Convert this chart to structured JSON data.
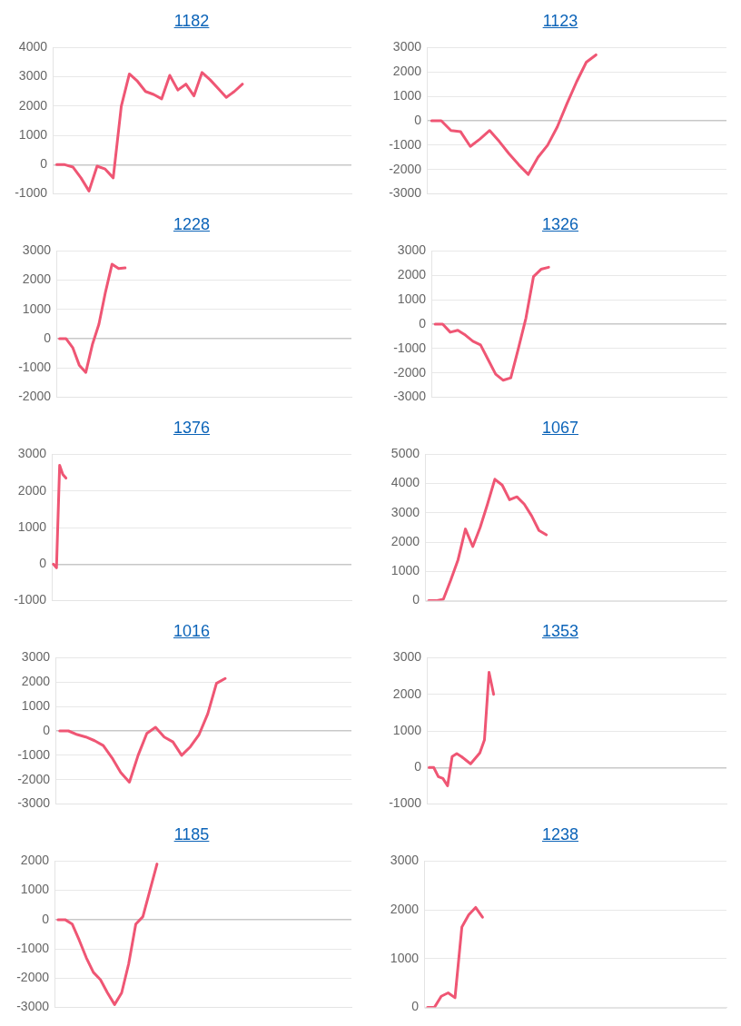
{
  "chart_data": [
    {
      "type": "line",
      "title": "1182",
      "categories": [
        null,
        null,
        null,
        null,
        null,
        null,
        null,
        null,
        null,
        null,
        null,
        null,
        null,
        null,
        null,
        null,
        null,
        null,
        null,
        null,
        null,
        null,
        null,
        null,
        null,
        null,
        null,
        null,
        null,
        null,
        null,
        null,
        null,
        null,
        null,
        null,
        null
      ],
      "values": [
        0,
        0,
        -80,
        -450,
        -900,
        -50,
        -150,
        -450,
        2000,
        3100,
        2850,
        2500,
        2400,
        2250,
        3050,
        2550,
        2750,
        2350,
        3150,
        2900,
        2600,
        2300,
        2500,
        2750,
        null,
        null,
        null,
        null,
        null,
        null,
        null,
        null,
        null,
        null,
        null,
        null,
        null
      ],
      "color": "#ef5674",
      "ylim": [
        -1000,
        4000
      ],
      "yticks": [
        -1000,
        0,
        1000,
        2000,
        3000,
        4000
      ],
      "grid": "y",
      "tick_labels": "y",
      "marker": "none"
    },
    {
      "type": "line",
      "title": "1123",
      "categories": [
        null,
        null,
        null,
        null,
        null,
        null,
        null,
        null,
        null,
        null,
        null,
        null,
        null,
        null,
        null,
        null,
        null,
        null,
        null,
        null,
        null,
        null,
        null,
        null,
        null,
        null,
        null,
        null,
        null,
        null,
        null
      ],
      "values": [
        0,
        0,
        -400,
        -450,
        -1050,
        -750,
        -400,
        -850,
        -1350,
        -1800,
        -2200,
        -1500,
        -1000,
        -250,
        700,
        1600,
        2400,
        2700,
        null,
        null,
        null,
        null,
        null,
        null,
        null,
        null,
        null,
        null,
        null,
        null,
        null
      ],
      "color": "#ef5674",
      "ylim": [
        -3000,
        3000
      ],
      "yticks": [
        -3000,
        -2000,
        -1000,
        0,
        1000,
        2000,
        3000
      ],
      "grid": "y",
      "tick_labels": "y",
      "marker": "none"
    },
    {
      "type": "line",
      "title": "1228",
      "categories": [
        null,
        null,
        null,
        null,
        null,
        null,
        null,
        null,
        null,
        null,
        null,
        null,
        null,
        null,
        null,
        null,
        null,
        null,
        null,
        null,
        null,
        null,
        null,
        null,
        null,
        null,
        null,
        null,
        null,
        null,
        null,
        null,
        null,
        null,
        null,
        null,
        null,
        null,
        null,
        null,
        null,
        null,
        null,
        null,
        null
      ],
      "values": [
        0,
        0,
        -300,
        -900,
        -1150,
        -200,
        500,
        1600,
        2550,
        2400,
        2420,
        null,
        null,
        null,
        null,
        null,
        null,
        null,
        null,
        null,
        null,
        null,
        null,
        null,
        null,
        null,
        null,
        null,
        null,
        null,
        null,
        null,
        null,
        null,
        null,
        null,
        null,
        null,
        null,
        null,
        null,
        null,
        null,
        null,
        null
      ],
      "color": "#ef5674",
      "ylim": [
        -2000,
        3000
      ],
      "yticks": [
        -2000,
        -1000,
        0,
        1000,
        2000,
        3000
      ],
      "grid": "y",
      "tick_labels": "y",
      "marker": "none"
    },
    {
      "type": "line",
      "title": "1326",
      "categories": [
        null,
        null,
        null,
        null,
        null,
        null,
        null,
        null,
        null,
        null,
        null,
        null,
        null,
        null,
        null,
        null,
        null,
        null,
        null,
        null,
        null,
        null,
        null,
        null,
        null,
        null,
        null,
        null,
        null,
        null,
        null,
        null,
        null,
        null,
        null,
        null,
        null,
        null,
        null
      ],
      "values": [
        0,
        0,
        -330,
        -250,
        -450,
        -700,
        -850,
        -1450,
        -2050,
        -2300,
        -2200,
        -1000,
        250,
        1950,
        2250,
        2330,
        null,
        null,
        null,
        null,
        null,
        null,
        null,
        null,
        null,
        null,
        null,
        null,
        null,
        null,
        null,
        null,
        null,
        null,
        null,
        null,
        null,
        null,
        null
      ],
      "color": "#ef5674",
      "ylim": [
        -3000,
        3000
      ],
      "yticks": [
        -3000,
        -2000,
        -1000,
        0,
        1000,
        2000,
        3000
      ],
      "grid": "y",
      "tick_labels": "y",
      "marker": "none"
    },
    {
      "type": "line",
      "title": "1376",
      "categories": [
        null,
        null,
        null,
        null,
        null,
        null,
        null,
        null,
        null,
        null,
        null,
        null,
        null,
        null,
        null,
        null,
        null,
        null,
        null,
        null,
        null,
        null,
        null,
        null,
        null,
        null,
        null,
        null,
        null,
        null,
        null,
        null,
        null,
        null,
        null,
        null,
        null,
        null,
        null,
        null,
        null,
        null,
        null,
        null,
        null,
        null,
        null,
        null,
        null,
        null,
        null,
        null,
        null,
        null,
        null,
        null,
        null,
        null,
        null,
        null,
        null,
        null,
        null,
        null,
        null,
        null,
        null,
        null,
        null,
        null,
        null,
        null,
        null,
        null,
        null,
        null,
        null,
        null,
        null,
        null,
        null,
        null,
        null,
        null,
        null,
        null,
        null,
        null,
        null,
        null,
        null,
        null,
        null,
        null,
        null
      ],
      "values": [
        0,
        -100,
        2700,
        2450,
        2350,
        null,
        null,
        null,
        null,
        null,
        null,
        null,
        null,
        null,
        null,
        null,
        null,
        null,
        null,
        null,
        null,
        null,
        null,
        null,
        null,
        null,
        null,
        null,
        null,
        null,
        null,
        null,
        null,
        null,
        null,
        null,
        null,
        null,
        null,
        null,
        null,
        null,
        null,
        null,
        null,
        null,
        null,
        null,
        null,
        null,
        null,
        null,
        null,
        null,
        null,
        null,
        null,
        null,
        null,
        null,
        null,
        null,
        null,
        null,
        null,
        null,
        null,
        null,
        null,
        null,
        null,
        null,
        null,
        null,
        null,
        null,
        null,
        null,
        null,
        null,
        null,
        null,
        null,
        null,
        null,
        null,
        null,
        null,
        null,
        null,
        null,
        null,
        null,
        null,
        null
      ],
      "color": "#ef5674",
      "ylim": [
        -1000,
        3000
      ],
      "yticks": [
        -1000,
        0,
        1000,
        2000,
        3000
      ],
      "grid": "y",
      "tick_labels": "y",
      "marker": "none"
    },
    {
      "type": "line",
      "title": "1067",
      "categories": [
        null,
        null,
        null,
        null,
        null,
        null,
        null,
        null,
        null,
        null,
        null,
        null,
        null,
        null,
        null,
        null,
        null,
        null,
        null,
        null,
        null,
        null,
        null,
        null,
        null,
        null,
        null,
        null,
        null,
        null,
        null,
        null,
        null,
        null,
        null,
        null,
        null,
        null,
        null,
        null,
        null
      ],
      "values": [
        0,
        0,
        50,
        700,
        1400,
        2450,
        1850,
        2500,
        3300,
        4150,
        3950,
        3450,
        3550,
        3300,
        2900,
        2400,
        2250,
        null,
        null,
        null,
        null,
        null,
        null,
        null,
        null,
        null,
        null,
        null,
        null,
        null,
        null,
        null,
        null,
        null,
        null,
        null,
        null,
        null,
        null,
        null,
        null
      ],
      "color": "#ef5674",
      "ylim": [
        0,
        5000
      ],
      "yticks": [
        0,
        1000,
        2000,
        3000,
        4000,
        5000
      ],
      "grid": "y",
      "tick_labels": "y",
      "marker": "none"
    },
    {
      "type": "line",
      "title": "1016",
      "categories": [
        null,
        null,
        null,
        null,
        null,
        null,
        null,
        null,
        null,
        null,
        null,
        null,
        null,
        null,
        null,
        null,
        null,
        null,
        null,
        null,
        null,
        null,
        null,
        null,
        null,
        null,
        null,
        null,
        null,
        null,
        null,
        null,
        null,
        null
      ],
      "values": [
        0,
        0,
        -150,
        -250,
        -400,
        -600,
        -1100,
        -1700,
        -2100,
        -1000,
        -100,
        150,
        -250,
        -450,
        -1000,
        -650,
        -150,
        700,
        1950,
        2150,
        null,
        null,
        null,
        null,
        null,
        null,
        null,
        null,
        null,
        null,
        null,
        null,
        null,
        null
      ],
      "color": "#ef5674",
      "ylim": [
        -3000,
        3000
      ],
      "yticks": [
        -3000,
        -2000,
        -1000,
        0,
        1000,
        2000,
        3000
      ],
      "grid": "y",
      "tick_labels": "y",
      "marker": "none"
    },
    {
      "type": "line",
      "title": "1353",
      "categories": [
        null,
        null,
        null,
        null,
        null,
        null,
        null,
        null,
        null,
        null,
        null,
        null,
        null,
        null,
        null,
        null,
        null,
        null,
        null,
        null,
        null,
        null,
        null,
        null,
        null,
        null,
        null,
        null,
        null,
        null,
        null,
        null,
        null,
        null,
        null,
        null,
        null,
        null,
        null,
        null,
        null,
        null,
        null,
        null,
        null,
        null,
        null,
        null,
        null,
        null,
        null,
        null,
        null,
        null,
        null,
        null,
        null,
        null,
        null,
        null,
        null,
        null,
        null,
        null,
        null
      ],
      "values": [
        0,
        0,
        -250,
        -300,
        -500,
        300,
        380,
        300,
        200,
        100,
        250,
        400,
        750,
        2600,
        2000,
        null,
        null,
        null,
        null,
        null,
        null,
        null,
        null,
        null,
        null,
        null,
        null,
        null,
        null,
        null,
        null,
        null,
        null,
        null,
        null,
        null,
        null,
        null,
        null,
        null,
        null,
        null,
        null,
        null,
        null,
        null,
        null,
        null,
        null,
        null,
        null,
        null,
        null,
        null,
        null,
        null,
        null,
        null,
        null,
        null,
        null,
        null,
        null,
        null,
        null
      ],
      "color": "#ef5674",
      "ylim": [
        -1000,
        3000
      ],
      "yticks": [
        -1000,
        0,
        1000,
        2000,
        3000
      ],
      "grid": "y",
      "tick_labels": "y",
      "marker": "none"
    },
    {
      "type": "line",
      "title": "1185",
      "categories": [
        null,
        null,
        null,
        null,
        null,
        null,
        null,
        null,
        null,
        null,
        null,
        null,
        null,
        null,
        null,
        null,
        null,
        null,
        null,
        null,
        null,
        null,
        null,
        null,
        null,
        null,
        null,
        null,
        null,
        null,
        null,
        null,
        null,
        null,
        null,
        null,
        null,
        null,
        null,
        null,
        null,
        null
      ],
      "values": [
        0,
        0,
        -150,
        -700,
        -1300,
        -1800,
        -2050,
        -2500,
        -2900,
        -2500,
        -1500,
        -150,
        100,
        1000,
        1900,
        null,
        null,
        null,
        null,
        null,
        null,
        null,
        null,
        null,
        null,
        null,
        null,
        null,
        null,
        null,
        null,
        null,
        null,
        null,
        null,
        null,
        null,
        null,
        null,
        null,
        null,
        null
      ],
      "color": "#ef5674",
      "ylim": [
        -3000,
        2000
      ],
      "yticks": [
        -3000,
        -2000,
        -1000,
        0,
        1000,
        2000
      ],
      "grid": "y",
      "tick_labels": "y",
      "marker": "none"
    },
    {
      "type": "line",
      "title": "1238",
      "categories": [
        null,
        null,
        null,
        null,
        null,
        null,
        null,
        null,
        null,
        null,
        null,
        null,
        null,
        null,
        null,
        null,
        null,
        null,
        null,
        null,
        null,
        null,
        null,
        null,
        null,
        null,
        null,
        null,
        null,
        null,
        null,
        null,
        null,
        null,
        null,
        null,
        null,
        null,
        null,
        null,
        null,
        null,
        null,
        null
      ],
      "values": [
        0,
        0,
        230,
        300,
        200,
        1650,
        1900,
        2050,
        1850,
        null,
        null,
        null,
        null,
        null,
        null,
        null,
        null,
        null,
        null,
        null,
        null,
        null,
        null,
        null,
        null,
        null,
        null,
        null,
        null,
        null,
        null,
        null,
        null,
        null,
        null,
        null,
        null,
        null,
        null,
        null,
        null,
        null,
        null,
        null
      ],
      "color": "#ef5674",
      "ylim": [
        0,
        3000
      ],
      "yticks": [
        0,
        1000,
        2000,
        3000
      ],
      "grid": "y",
      "tick_labels": "y",
      "marker": "none"
    }
  ]
}
